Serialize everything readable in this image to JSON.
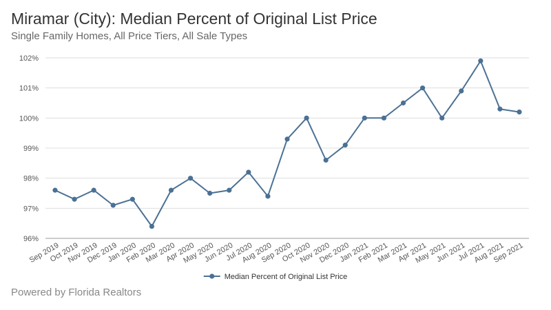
{
  "header": {
    "title": "Miramar (City): Median Percent of Original List Price",
    "subtitle": "Single Family Homes, All Price Tiers, All Sale Types"
  },
  "footer": {
    "text": "Powered by Florida Realtors"
  },
  "colors": {
    "series": "#4a7194",
    "grid": "#dddddd",
    "axis": "#999999"
  },
  "chart_data": {
    "type": "line",
    "title": "Miramar (City): Median Percent of Original List Price",
    "subtitle": "Single Family Homes, All Price Tiers, All Sale Types",
    "xlabel": "",
    "ylabel": "",
    "ylim": [
      96,
      102
    ],
    "yticks": [
      96,
      97,
      98,
      99,
      100,
      101,
      102
    ],
    "ytick_labels": [
      "96%",
      "97%",
      "98%",
      "99%",
      "100%",
      "101%",
      "102%"
    ],
    "grid": true,
    "legend_position": "bottom",
    "categories": [
      "Sep 2019",
      "Oct 2019",
      "Nov 2019",
      "Dec 2019",
      "Jan 2020",
      "Feb 2020",
      "Mar 2020",
      "Apr 2020",
      "May 2020",
      "Jun 2020",
      "Jul 2020",
      "Aug 2020",
      "Sep 2020",
      "Oct 2020",
      "Nov 2020",
      "Dec 2020",
      "Jan 2021",
      "Feb 2021",
      "Mar 2021",
      "Apr 2021",
      "May 2021",
      "Jun 2021",
      "Jul 2021",
      "Aug 2021",
      "Sep 2021"
    ],
    "series": [
      {
        "name": "Median Percent of Original List Price",
        "values": [
          97.6,
          97.3,
          97.6,
          97.1,
          97.3,
          96.4,
          97.6,
          98.0,
          97.5,
          97.6,
          98.2,
          97.4,
          99.3,
          100.0,
          98.6,
          99.1,
          100.0,
          100.0,
          100.5,
          101.0,
          100.0,
          100.9,
          101.9,
          100.3,
          100.2
        ]
      }
    ]
  }
}
